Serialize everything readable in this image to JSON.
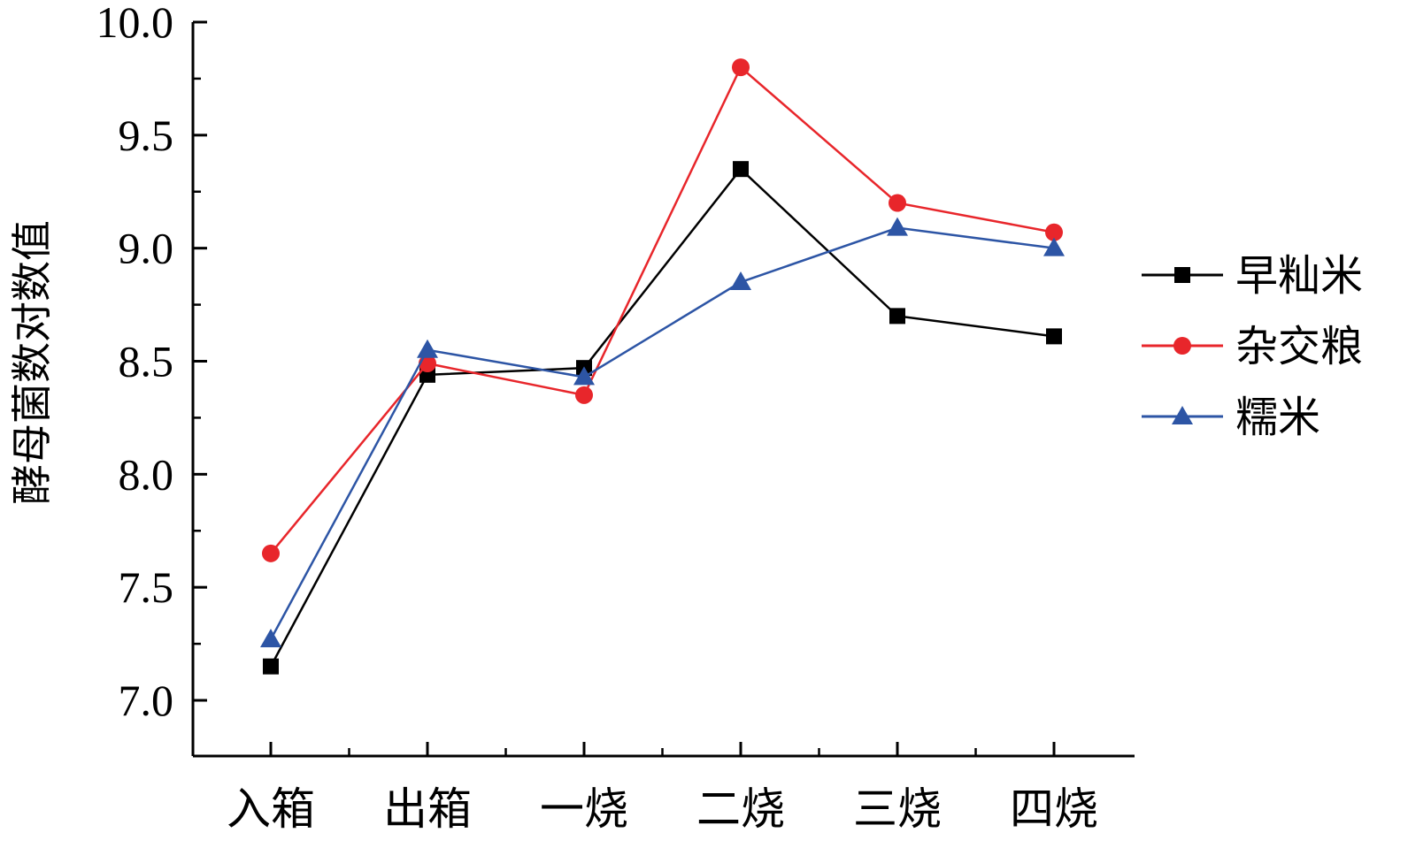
{
  "chart_data": {
    "type": "line",
    "title": "",
    "xlabel": "",
    "ylabel": "酵母菌数对数值",
    "ylim": [
      7.0,
      10.0
    ],
    "yticks": [
      "7.0",
      "7.5",
      "8.0",
      "8.5",
      "9.0",
      "9.5",
      "10.0"
    ],
    "categories": [
      "入箱",
      "出箱",
      "一烧",
      "二烧",
      "三烧",
      "四烧"
    ],
    "grid": false,
    "legend_position": "right",
    "series": [
      {
        "name": "早籼米",
        "color": "#000000",
        "marker": "square",
        "values": [
          7.15,
          8.44,
          8.47,
          9.35,
          8.7,
          8.61
        ]
      },
      {
        "name": "杂交粮",
        "color": "#e8262b",
        "marker": "circle",
        "values": [
          7.65,
          8.49,
          8.35,
          9.8,
          9.2,
          9.07
        ]
      },
      {
        "name": "糯米",
        "color": "#2d55a5",
        "marker": "triangle",
        "values": [
          7.27,
          8.55,
          8.43,
          8.85,
          9.09,
          9.0
        ]
      }
    ]
  }
}
